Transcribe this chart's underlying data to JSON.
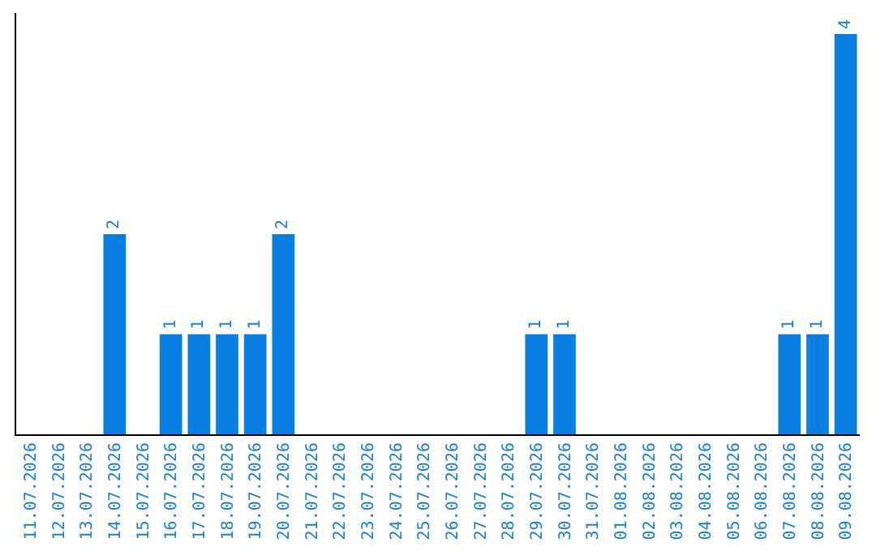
{
  "chart_data": {
    "type": "bar",
    "categories": [
      "11.07.2026",
      "12.07.2026",
      "13.07.2026",
      "14.07.2026",
      "15.07.2026",
      "16.07.2026",
      "17.07.2026",
      "18.07.2026",
      "19.07.2026",
      "20.07.2026",
      "21.07.2026",
      "22.07.2026",
      "23.07.2026",
      "24.07.2026",
      "25.07.2026",
      "26.07.2026",
      "27.07.2026",
      "28.07.2026",
      "29.07.2026",
      "30.07.2026",
      "31.07.2026",
      "01.08.2026",
      "02.08.2026",
      "03.08.2026",
      "04.08.2026",
      "05.08.2026",
      "06.08.2026",
      "07.08.2026",
      "08.08.2026",
      "09.08.2026"
    ],
    "values": [
      0,
      0,
      0,
      2,
      0,
      1,
      1,
      1,
      1,
      2,
      0,
      0,
      0,
      0,
      0,
      0,
      0,
      0,
      1,
      1,
      0,
      0,
      0,
      0,
      0,
      0,
      0,
      1,
      1,
      4
    ],
    "value_labels": [
      null,
      null,
      null,
      "2",
      null,
      "1",
      "1",
      "1",
      "1",
      "2",
      null,
      null,
      null,
      null,
      null,
      null,
      null,
      null,
      "1",
      "1",
      null,
      null,
      null,
      null,
      null,
      null,
      null,
      "1",
      "1",
      "4"
    ],
    "color": "#0a7fe3",
    "tick_labels": "x",
    "grid": false,
    "legend": false
  }
}
